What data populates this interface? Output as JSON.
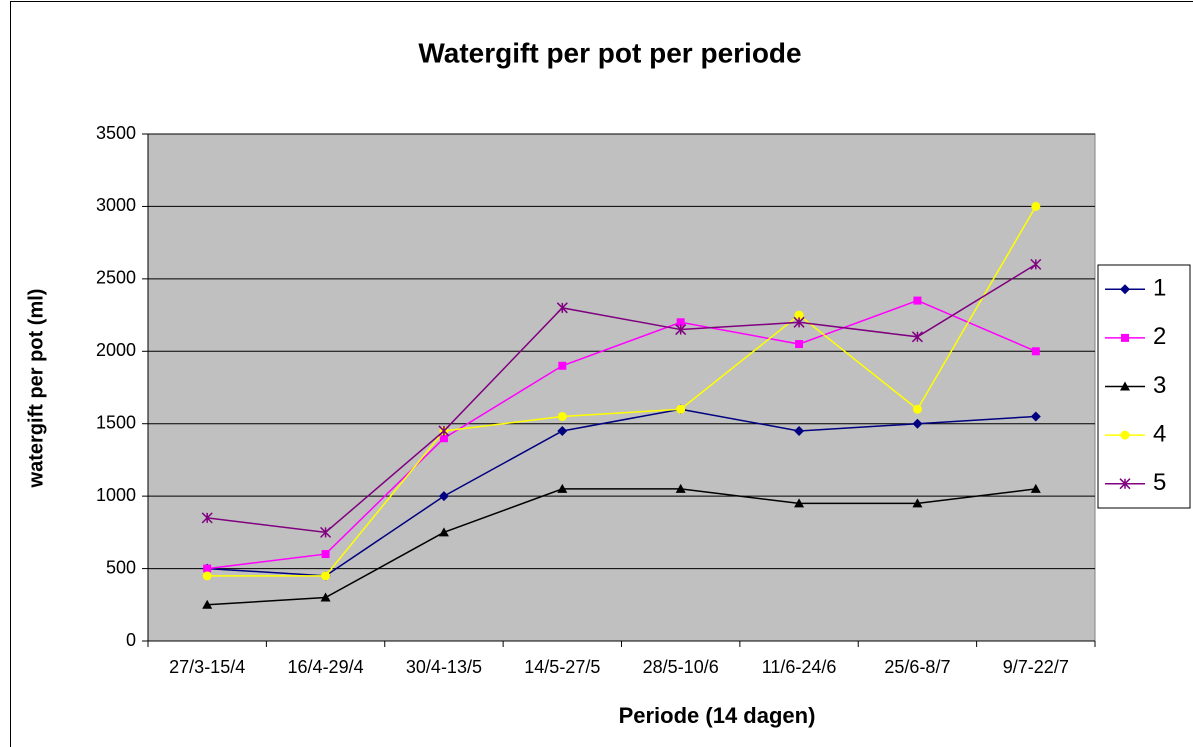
{
  "chart_data": {
    "type": "line",
    "title": "Watergift per pot per periode",
    "x_label": "Periode (14 dagen)",
    "y_label": "watergift per pot (ml)",
    "categories": [
      "27/3-15/4",
      "16/4-29/4",
      "30/4-13/5",
      "14/5-27/5",
      "28/5-10/6",
      "11/6-24/6",
      "25/6-8/7",
      "9/7-22/7"
    ],
    "series": [
      {
        "name": "1",
        "color": "#000080",
        "marker": "diamond",
        "values": [
          500,
          450,
          1000,
          1450,
          1600,
          1450,
          1500,
          1550
        ]
      },
      {
        "name": "2",
        "color": "#ff00ff",
        "marker": "square",
        "values": [
          500,
          600,
          1400,
          1900,
          2200,
          2050,
          2350,
          2000
        ]
      },
      {
        "name": "3",
        "color": "#000000",
        "marker": "triangle",
        "values": [
          250,
          300,
          750,
          1050,
          1050,
          950,
          950,
          1050
        ]
      },
      {
        "name": "4",
        "color": "#ffff00",
        "marker": "circle",
        "values": [
          450,
          450,
          1450,
          1550,
          1600,
          2250,
          1600,
          3000
        ]
      },
      {
        "name": "5",
        "color": "#800080",
        "marker": "asterisk",
        "values": [
          850,
          750,
          1450,
          2300,
          2150,
          2200,
          2100,
          2600
        ]
      }
    ],
    "ylim": [
      0,
      3500
    ],
    "yticks": [
      0,
      500,
      1000,
      1500,
      2000,
      2500,
      3000,
      3500
    ],
    "grid": true,
    "legend": "right"
  }
}
